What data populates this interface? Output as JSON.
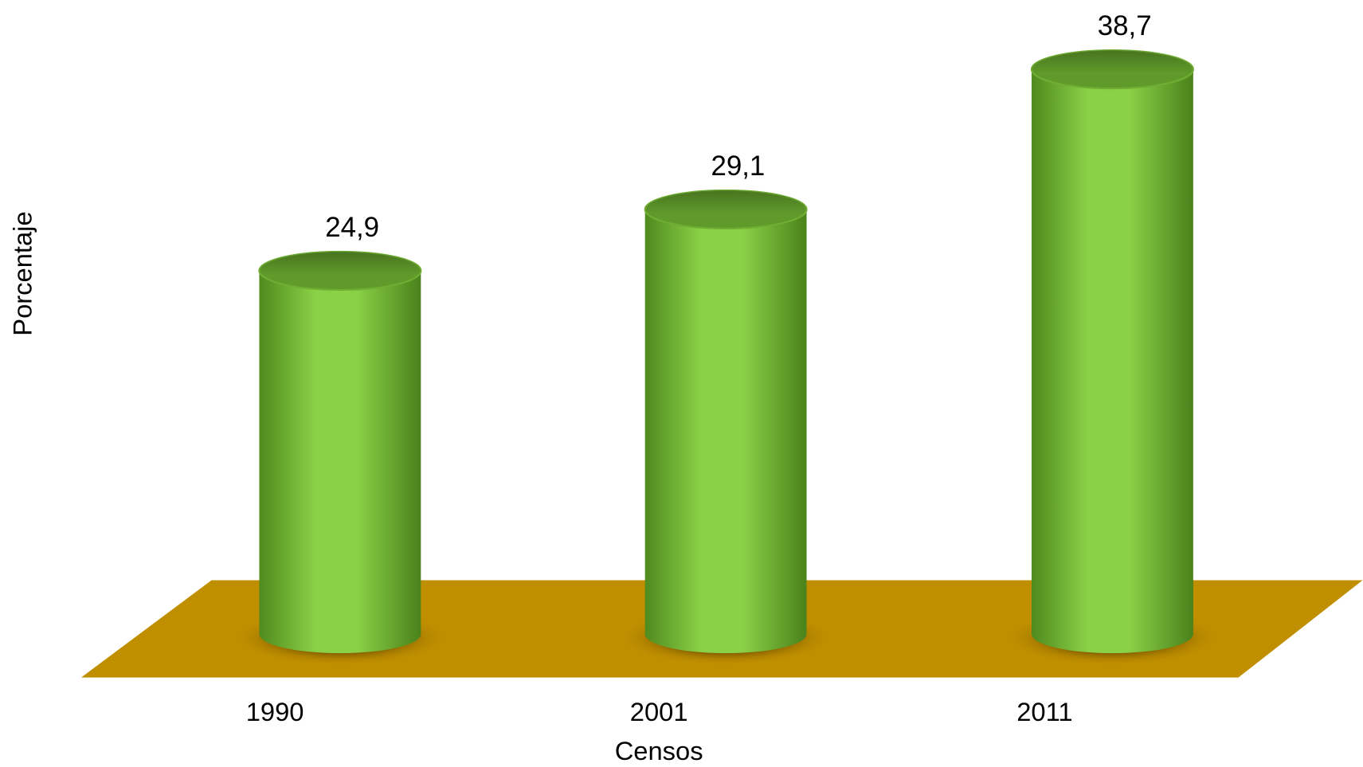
{
  "chart_data": {
    "type": "bar",
    "x_label": "Censos",
    "y_label": "Porcentaje",
    "categories": [
      "1990",
      "2001",
      "2011"
    ],
    "values": [
      24.9,
      29.1,
      38.7
    ],
    "value_labels": [
      "24,9",
      "29,1",
      "38,7"
    ],
    "color": "#8bd147",
    "floor_color": "#bf8f00"
  }
}
